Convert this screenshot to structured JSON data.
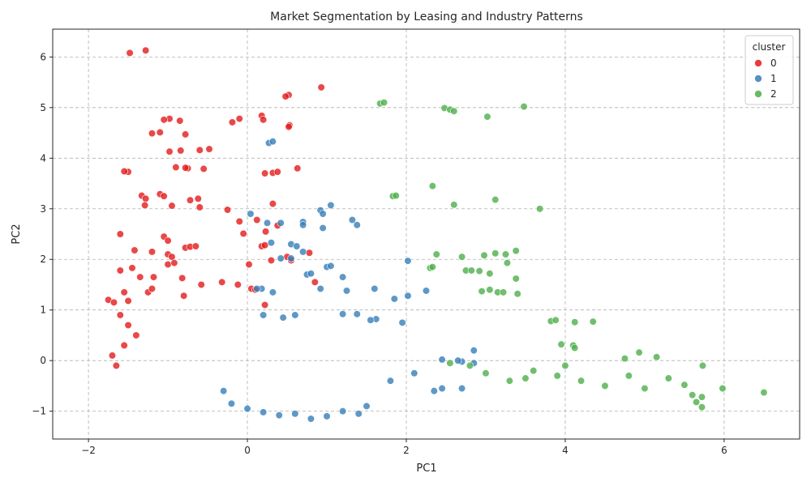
{
  "chart_data": {
    "type": "scatter",
    "title": "Market Segmentation by Leasing and Industry Patterns",
    "xlabel": "PC1",
    "ylabel": "PC2",
    "xlim": [
      -2.45,
      6.95
    ],
    "ylim": [
      -1.55,
      6.55
    ],
    "xticks": [
      -2,
      0,
      2,
      4,
      6
    ],
    "yticks": [
      -1,
      0,
      1,
      2,
      3,
      4,
      5,
      6
    ],
    "grid": true,
    "legend": {
      "title": "cluster",
      "placement": "top-right"
    },
    "colors": {
      "0": "#e41a1c",
      "1": "#377eb8",
      "2": "#4daf4a"
    },
    "series": [
      {
        "name": "0",
        "color": "#e41a1c",
        "points": [
          [
            -1.48,
            6.08
          ],
          [
            -1.28,
            6.13
          ],
          [
            0.93,
            5.4
          ],
          [
            0.52,
            5.25
          ],
          [
            0.48,
            5.22
          ],
          [
            0.53,
            4.65
          ],
          [
            0.52,
            4.62
          ],
          [
            -0.98,
            4.78
          ],
          [
            -1.05,
            4.76
          ],
          [
            -0.85,
            4.74
          ],
          [
            -0.19,
            4.71
          ],
          [
            -0.1,
            4.78
          ],
          [
            0.18,
            4.84
          ],
          [
            0.2,
            4.76
          ],
          [
            -1.1,
            4.51
          ],
          [
            -1.2,
            4.49
          ],
          [
            -0.78,
            4.47
          ],
          [
            -0.98,
            4.13
          ],
          [
            -0.84,
            4.15
          ],
          [
            -0.6,
            4.16
          ],
          [
            -0.48,
            4.18
          ],
          [
            -0.9,
            3.82
          ],
          [
            -0.75,
            3.8
          ],
          [
            -0.78,
            3.81
          ],
          [
            -0.55,
            3.79
          ],
          [
            0.22,
            3.7
          ],
          [
            0.32,
            3.71
          ],
          [
            0.38,
            3.73
          ],
          [
            0.63,
            3.8
          ],
          [
            -1.5,
            3.73
          ],
          [
            -1.55,
            3.74
          ],
          [
            -1.33,
            3.26
          ],
          [
            -1.28,
            3.2
          ],
          [
            -1.29,
            3.07
          ],
          [
            -1.1,
            3.29
          ],
          [
            -1.05,
            3.25
          ],
          [
            -0.72,
            3.17
          ],
          [
            -0.62,
            3.2
          ],
          [
            -0.6,
            3.03
          ],
          [
            -0.95,
            3.06
          ],
          [
            -0.25,
            2.98
          ],
          [
            0.32,
            3.1
          ],
          [
            0.12,
            2.78
          ],
          [
            -0.1,
            2.75
          ],
          [
            -0.05,
            2.51
          ],
          [
            0.23,
            2.55
          ],
          [
            0.38,
            2.67
          ],
          [
            -1.05,
            2.45
          ],
          [
            -1.0,
            2.37
          ],
          [
            -1.42,
            2.18
          ],
          [
            -1.2,
            2.15
          ],
          [
            -0.78,
            2.23
          ],
          [
            -0.72,
            2.25
          ],
          [
            -0.65,
            2.26
          ],
          [
            0.18,
            2.26
          ],
          [
            0.22,
            2.28
          ],
          [
            0.78,
            2.13
          ],
          [
            0.5,
            2.05
          ],
          [
            0.55,
            1.98
          ],
          [
            0.3,
            1.98
          ],
          [
            0.02,
            1.9
          ],
          [
            -1.0,
            2.1
          ],
          [
            -0.95,
            2.05
          ],
          [
            -1.0,
            1.9
          ],
          [
            -0.92,
            1.93
          ],
          [
            -0.82,
            1.63
          ],
          [
            -1.45,
            1.83
          ],
          [
            -1.35,
            1.65
          ],
          [
            -1.18,
            1.65
          ],
          [
            -1.6,
            1.78
          ],
          [
            -0.58,
            1.5
          ],
          [
            -0.32,
            1.55
          ],
          [
            -0.12,
            1.5
          ],
          [
            0.05,
            1.42
          ],
          [
            0.1,
            1.4
          ],
          [
            0.85,
            1.55
          ],
          [
            0.22,
            1.1
          ],
          [
            -1.25,
            1.35
          ],
          [
            -1.2,
            1.42
          ],
          [
            -1.55,
            1.35
          ],
          [
            -1.75,
            1.2
          ],
          [
            -1.68,
            1.15
          ],
          [
            -1.5,
            1.18
          ],
          [
            -0.8,
            1.28
          ],
          [
            -1.6,
            2.5
          ],
          [
            -1.6,
            0.9
          ],
          [
            -1.5,
            0.7
          ],
          [
            -1.4,
            0.5
          ],
          [
            -1.55,
            0.3
          ],
          [
            -1.7,
            0.1
          ],
          [
            -1.65,
            -0.1
          ]
        ]
      },
      {
        "name": "1",
        "color": "#377eb8",
        "points": [
          [
            0.27,
            4.3
          ],
          [
            0.32,
            4.33
          ],
          [
            0.04,
            2.9
          ],
          [
            0.25,
            2.72
          ],
          [
            0.42,
            2.72
          ],
          [
            0.7,
            2.74
          ],
          [
            0.7,
            2.68
          ],
          [
            0.3,
            2.33
          ],
          [
            0.55,
            2.3
          ],
          [
            0.62,
            2.26
          ],
          [
            0.7,
            2.15
          ],
          [
            0.95,
            2.62
          ],
          [
            0.92,
            2.97
          ],
          [
            0.95,
            2.9
          ],
          [
            1.05,
            3.07
          ],
          [
            1.32,
            2.78
          ],
          [
            1.38,
            2.68
          ],
          [
            0.42,
            2.02
          ],
          [
            0.55,
            2.02
          ],
          [
            1.0,
            1.85
          ],
          [
            1.05,
            1.87
          ],
          [
            1.2,
            1.65
          ],
          [
            0.75,
            1.7
          ],
          [
            0.8,
            1.72
          ],
          [
            0.92,
            1.42
          ],
          [
            1.25,
            1.38
          ],
          [
            0.32,
            1.35
          ],
          [
            0.18,
            1.42
          ],
          [
            0.12,
            1.42
          ],
          [
            1.6,
            1.42
          ],
          [
            1.85,
            1.22
          ],
          [
            2.02,
            1.28
          ],
          [
            2.25,
            1.38
          ],
          [
            2.02,
            1.97
          ],
          [
            1.95,
            0.75
          ],
          [
            1.62,
            0.82
          ],
          [
            1.55,
            0.8
          ],
          [
            1.38,
            0.92
          ],
          [
            1.2,
            0.92
          ],
          [
            0.45,
            0.85
          ],
          [
            0.6,
            0.9
          ],
          [
            0.2,
            0.9
          ],
          [
            2.45,
            0.02
          ],
          [
            2.35,
            -0.6
          ],
          [
            2.45,
            -0.55
          ],
          [
            2.7,
            -0.02
          ],
          [
            2.7,
            -0.55
          ],
          [
            2.85,
            0.2
          ],
          [
            2.85,
            -0.05
          ],
          [
            2.65,
            0.0
          ],
          [
            2.1,
            -0.25
          ],
          [
            1.8,
            -0.4
          ],
          [
            1.5,
            -0.9
          ],
          [
            1.4,
            -1.05
          ],
          [
            1.2,
            -1.0
          ],
          [
            1.0,
            -1.1
          ],
          [
            0.8,
            -1.15
          ],
          [
            0.6,
            -1.05
          ],
          [
            0.4,
            -1.08
          ],
          [
            0.2,
            -1.02
          ],
          [
            0.0,
            -0.95
          ],
          [
            -0.2,
            -0.85
          ],
          [
            -0.3,
            -0.6
          ]
        ]
      },
      {
        "name": "2",
        "color": "#4daf4a",
        "points": [
          [
            1.67,
            5.08
          ],
          [
            1.72,
            5.1
          ],
          [
            2.48,
            4.99
          ],
          [
            2.55,
            4.96
          ],
          [
            2.6,
            4.93
          ],
          [
            3.02,
            4.82
          ],
          [
            3.48,
            5.02
          ],
          [
            1.83,
            3.25
          ],
          [
            1.87,
            3.26
          ],
          [
            2.33,
            3.45
          ],
          [
            2.6,
            3.08
          ],
          [
            3.12,
            3.18
          ],
          [
            3.68,
            3.0
          ],
          [
            2.3,
            1.83
          ],
          [
            2.33,
            1.85
          ],
          [
            2.38,
            2.1
          ],
          [
            2.7,
            2.05
          ],
          [
            2.98,
            2.08
          ],
          [
            3.12,
            2.12
          ],
          [
            3.25,
            2.1
          ],
          [
            3.38,
            2.17
          ],
          [
            3.27,
            1.93
          ],
          [
            3.38,
            1.62
          ],
          [
            2.75,
            1.78
          ],
          [
            2.82,
            1.78
          ],
          [
            2.92,
            1.77
          ],
          [
            3.05,
            1.72
          ],
          [
            2.95,
            1.37
          ],
          [
            3.05,
            1.4
          ],
          [
            3.15,
            1.35
          ],
          [
            3.22,
            1.35
          ],
          [
            3.4,
            1.32
          ],
          [
            3.82,
            0.78
          ],
          [
            3.88,
            0.8
          ],
          [
            4.12,
            0.76
          ],
          [
            4.35,
            0.77
          ],
          [
            3.95,
            0.32
          ],
          [
            4.1,
            0.3
          ],
          [
            4.12,
            0.25
          ],
          [
            4.75,
            0.04
          ],
          [
            4.93,
            0.16
          ],
          [
            5.15,
            0.07
          ],
          [
            5.5,
            -0.48
          ],
          [
            5.6,
            -0.68
          ],
          [
            5.65,
            -0.82
          ],
          [
            5.72,
            -0.72
          ],
          [
            5.72,
            -0.92
          ],
          [
            5.73,
            -0.1
          ],
          [
            5.98,
            -0.55
          ],
          [
            6.5,
            -0.63
          ],
          [
            5.3,
            -0.35
          ],
          [
            5.0,
            -0.55
          ],
          [
            4.8,
            -0.3
          ],
          [
            4.5,
            -0.5
          ],
          [
            4.2,
            -0.4
          ],
          [
            3.9,
            -0.3
          ],
          [
            3.6,
            -0.2
          ],
          [
            3.3,
            -0.4
          ],
          [
            3.0,
            -0.25
          ],
          [
            2.8,
            -0.1
          ],
          [
            2.55,
            -0.05
          ],
          [
            4.0,
            -0.1
          ],
          [
            3.5,
            -0.35
          ]
        ]
      }
    ]
  }
}
